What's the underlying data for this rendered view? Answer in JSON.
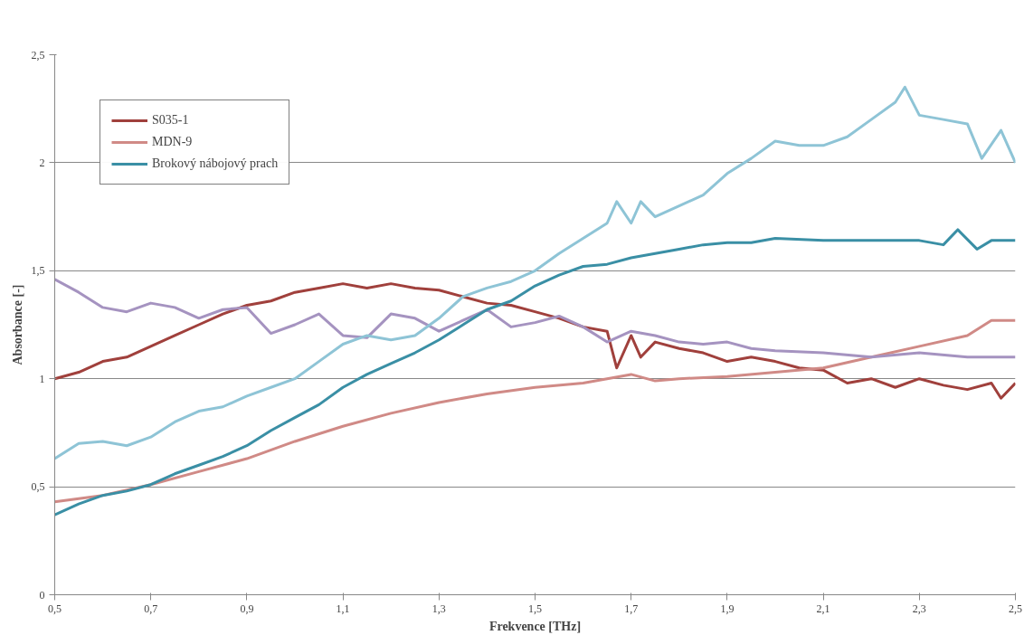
{
  "chart_data": {
    "type": "line",
    "xlabel": "Frekvence [THz]",
    "ylabel": "Absorbance [-]",
    "xlim": [
      0.5,
      2.5
    ],
    "ylim": [
      0,
      2.5
    ],
    "xticks": [
      {
        "value": 0.5,
        "label": "0,5"
      },
      {
        "value": 0.7,
        "label": "0,7"
      },
      {
        "value": 0.9,
        "label": "0,9"
      },
      {
        "value": 1.1,
        "label": "1,1"
      },
      {
        "value": 1.3,
        "label": "1,3"
      },
      {
        "value": 1.5,
        "label": "1,5"
      },
      {
        "value": 1.7,
        "label": "1,7"
      },
      {
        "value": 1.9,
        "label": "1,9"
      },
      {
        "value": 2.1,
        "label": "2,1"
      },
      {
        "value": 2.3,
        "label": "2,3"
      },
      {
        "value": 2.5,
        "label": "2,5"
      }
    ],
    "yticks": [
      0,
      {
        "value": 0.5,
        "label": "0,5"
      },
      1,
      {
        "value": 1.5,
        "label": "1,5"
      },
      2,
      {
        "value": 2.5,
        "label": "2,5"
      }
    ],
    "grid": "y",
    "legend": "top left",
    "marker": "none",
    "line_style": "solid",
    "series": [
      {
        "name": "S035-1",
        "color": "#a0403c",
        "x": [
          0.5,
          0.55,
          0.6,
          0.65,
          0.7,
          0.75,
          0.8,
          0.85,
          0.9,
          0.95,
          1.0,
          1.05,
          1.1,
          1.15,
          1.2,
          1.25,
          1.3,
          1.35,
          1.4,
          1.45,
          1.5,
          1.55,
          1.6,
          1.65,
          1.67,
          1.7,
          1.72,
          1.75,
          1.8,
          1.85,
          1.9,
          1.95,
          2.0,
          2.05,
          2.1,
          2.15,
          2.2,
          2.25,
          2.3,
          2.35,
          2.4,
          2.45,
          2.47,
          2.5
        ],
        "values": [
          1.0,
          1.03,
          1.08,
          1.1,
          1.15,
          1.2,
          1.25,
          1.3,
          1.34,
          1.36,
          1.4,
          1.42,
          1.44,
          1.42,
          1.44,
          1.42,
          1.41,
          1.38,
          1.35,
          1.34,
          1.31,
          1.28,
          1.24,
          1.22,
          1.05,
          1.2,
          1.1,
          1.17,
          1.14,
          1.12,
          1.08,
          1.1,
          1.08,
          1.05,
          1.04,
          0.98,
          1.0,
          0.96,
          1.0,
          0.97,
          0.95,
          0.98,
          0.91,
          0.98
        ]
      },
      {
        "name": "MDN-9",
        "color": "#d08a86",
        "x": [
          0.5,
          0.6,
          0.7,
          0.8,
          0.9,
          1.0,
          1.1,
          1.2,
          1.3,
          1.4,
          1.5,
          1.6,
          1.65,
          1.7,
          1.75,
          1.8,
          1.9,
          2.0,
          2.1,
          2.2,
          2.3,
          2.4,
          2.45,
          2.5
        ],
        "values": [
          0.43,
          0.46,
          0.51,
          0.57,
          0.63,
          0.71,
          0.78,
          0.84,
          0.89,
          0.93,
          0.96,
          0.98,
          1.0,
          1.02,
          0.99,
          1.0,
          1.01,
          1.03,
          1.05,
          1.1,
          1.15,
          1.2,
          1.27,
          1.27
        ]
      },
      {
        "color": "#a593c0",
        "x": [
          0.5,
          0.55,
          0.6,
          0.65,
          0.7,
          0.75,
          0.8,
          0.85,
          0.9,
          0.95,
          1.0,
          1.05,
          1.1,
          1.15,
          1.2,
          1.25,
          1.3,
          1.35,
          1.4,
          1.45,
          1.5,
          1.55,
          1.6,
          1.65,
          1.7,
          1.75,
          1.8,
          1.85,
          1.9,
          1.95,
          2.0,
          2.1,
          2.2,
          2.3,
          2.4,
          2.5
        ],
        "values": [
          1.46,
          1.4,
          1.33,
          1.31,
          1.35,
          1.33,
          1.28,
          1.32,
          1.33,
          1.21,
          1.25,
          1.3,
          1.2,
          1.19,
          1.3,
          1.28,
          1.22,
          1.27,
          1.32,
          1.24,
          1.26,
          1.29,
          1.24,
          1.17,
          1.22,
          1.2,
          1.17,
          1.16,
          1.17,
          1.14,
          1.13,
          1.12,
          1.1,
          1.12,
          1.1,
          1.1
        ]
      },
      {
        "color": "#8ec4d6",
        "x": [
          0.5,
          0.55,
          0.6,
          0.65,
          0.7,
          0.75,
          0.8,
          0.85,
          0.9,
          0.95,
          1.0,
          1.05,
          1.1,
          1.15,
          1.2,
          1.25,
          1.3,
          1.35,
          1.4,
          1.45,
          1.5,
          1.55,
          1.6,
          1.65,
          1.67,
          1.7,
          1.72,
          1.75,
          1.8,
          1.85,
          1.9,
          1.95,
          2.0,
          2.05,
          2.1,
          2.15,
          2.2,
          2.25,
          2.27,
          2.3,
          2.35,
          2.4,
          2.43,
          2.47,
          2.5
        ],
        "values": [
          0.63,
          0.7,
          0.71,
          0.69,
          0.73,
          0.8,
          0.85,
          0.87,
          0.92,
          0.96,
          1.0,
          1.08,
          1.16,
          1.2,
          1.18,
          1.2,
          1.28,
          1.38,
          1.42,
          1.45,
          1.5,
          1.58,
          1.65,
          1.72,
          1.82,
          1.72,
          1.82,
          1.75,
          1.8,
          1.85,
          1.95,
          2.02,
          2.1,
          2.08,
          2.08,
          2.12,
          2.2,
          2.28,
          2.35,
          2.22,
          2.2,
          2.18,
          2.02,
          2.15,
          2.0
        ]
      },
      {
        "name": "Brokový nábojový prach",
        "color": "#3a8fa5",
        "x": [
          0.5,
          0.55,
          0.6,
          0.65,
          0.7,
          0.75,
          0.8,
          0.85,
          0.9,
          0.95,
          1.0,
          1.05,
          1.1,
          1.15,
          1.2,
          1.25,
          1.3,
          1.35,
          1.4,
          1.45,
          1.5,
          1.55,
          1.6,
          1.65,
          1.7,
          1.75,
          1.8,
          1.85,
          1.9,
          1.95,
          2.0,
          2.1,
          2.2,
          2.3,
          2.35,
          2.38,
          2.42,
          2.45,
          2.5
        ],
        "values": [
          0.37,
          0.42,
          0.46,
          0.48,
          0.51,
          0.56,
          0.6,
          0.64,
          0.69,
          0.76,
          0.82,
          0.88,
          0.96,
          1.02,
          1.07,
          1.12,
          1.18,
          1.25,
          1.32,
          1.36,
          1.43,
          1.48,
          1.52,
          1.53,
          1.56,
          1.58,
          1.6,
          1.62,
          1.63,
          1.63,
          1.65,
          1.64,
          1.64,
          1.64,
          1.62,
          1.69,
          1.6,
          1.64,
          1.64
        ]
      }
    ]
  }
}
